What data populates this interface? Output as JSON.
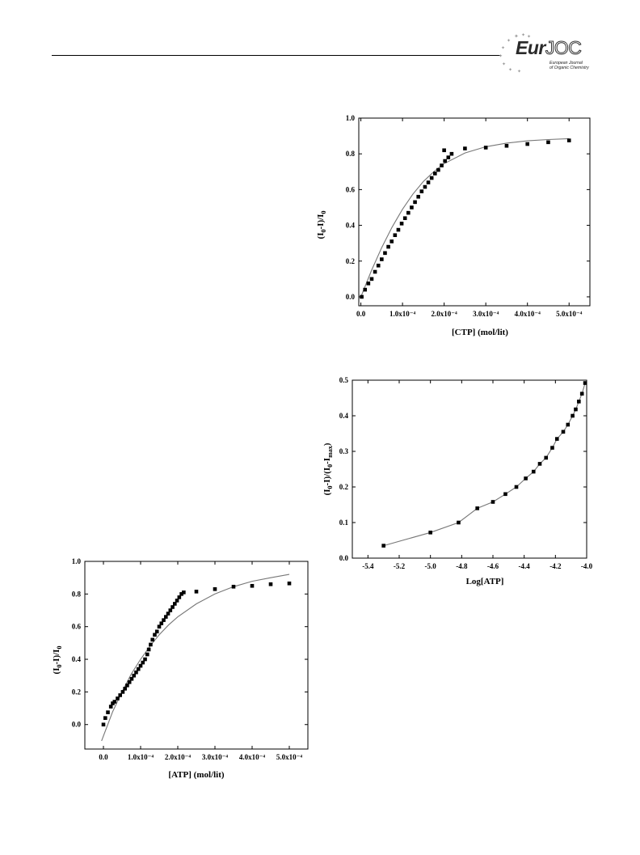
{
  "header": {
    "logo": {
      "main": "EurJOC",
      "sub_line1": "European Journal",
      "sub_line2": "of Organic Chemistry"
    }
  },
  "chart_data": [
    {
      "id": "ctp",
      "type": "scatter",
      "title": "",
      "xlabel": "[CTP] (mol/lit)",
      "ylabel": "(I0-I)/I0",
      "xlim": [
        -0.05,
        5.5
      ],
      "ylim": [
        -0.05,
        1.0
      ],
      "xticks": [
        0,
        1,
        2,
        3,
        4,
        5
      ],
      "xtick_labels": [
        "0.0",
        "1.0x10⁻⁴",
        "2.0x10⁻⁴",
        "3.0x10⁻⁴",
        "4.0x10⁻⁴",
        "5.0x10⁻⁴"
      ],
      "yticks": [
        0,
        0.2,
        0.4,
        0.6,
        0.8,
        1.0
      ],
      "ytick_labels": [
        "0.0",
        "0.2",
        "0.4",
        "0.6",
        "0.8",
        "1.0"
      ],
      "x_unit": "x10⁻⁴ mol/lit",
      "points": [
        [
          0.02,
          0.0
        ],
        [
          0.1,
          0.04
        ],
        [
          0.18,
          0.075
        ],
        [
          0.26,
          0.1
        ],
        [
          0.34,
          0.14
        ],
        [
          0.42,
          0.175
        ],
        [
          0.5,
          0.21
        ],
        [
          0.58,
          0.245
        ],
        [
          0.66,
          0.28
        ],
        [
          0.74,
          0.31
        ],
        [
          0.82,
          0.345
        ],
        [
          0.9,
          0.375
        ],
        [
          0.98,
          0.41
        ],
        [
          1.06,
          0.44
        ],
        [
          1.14,
          0.47
        ],
        [
          1.22,
          0.5
        ],
        [
          1.3,
          0.53
        ],
        [
          1.38,
          0.56
        ],
        [
          1.46,
          0.59
        ],
        [
          1.54,
          0.615
        ],
        [
          1.62,
          0.64
        ],
        [
          1.7,
          0.665
        ],
        [
          1.78,
          0.69
        ],
        [
          1.86,
          0.71
        ],
        [
          1.94,
          0.735
        ],
        [
          2.02,
          0.76
        ],
        [
          2.1,
          0.78
        ],
        [
          2.18,
          0.8
        ],
        [
          2.0,
          0.82
        ],
        [
          2.5,
          0.83
        ],
        [
          3.0,
          0.835
        ],
        [
          3.5,
          0.845
        ],
        [
          4.0,
          0.855
        ],
        [
          4.5,
          0.865
        ],
        [
          5.0,
          0.875
        ]
      ],
      "fit_line": [
        [
          0,
          0
        ],
        [
          0.25,
          0.145
        ],
        [
          0.5,
          0.275
        ],
        [
          0.75,
          0.39
        ],
        [
          1.0,
          0.49
        ],
        [
          1.25,
          0.575
        ],
        [
          1.5,
          0.645
        ],
        [
          1.75,
          0.7
        ],
        [
          2.0,
          0.745
        ],
        [
          2.5,
          0.805
        ],
        [
          3.0,
          0.84
        ],
        [
          3.5,
          0.86
        ],
        [
          4.0,
          0.873
        ],
        [
          4.5,
          0.88
        ],
        [
          5.0,
          0.885
        ]
      ]
    },
    {
      "id": "log-atp",
      "type": "line",
      "title": "",
      "xlabel": "Log[ATP]",
      "ylabel": "(I0-I)/(I0-Imax)",
      "xlim": [
        -5.5,
        -4.0
      ],
      "ylim": [
        0.0,
        0.5
      ],
      "xticks": [
        -5.4,
        -5.2,
        -5.0,
        -4.8,
        -4.6,
        -4.4,
        -4.2,
        -4.0
      ],
      "xtick_labels": [
        "-5.4",
        "-5.2",
        "-5.0",
        "-4.8",
        "-4.6",
        "-4.4",
        "-4.2",
        "-4.0"
      ],
      "yticks": [
        0.0,
        0.1,
        0.2,
        0.3,
        0.4,
        0.5
      ],
      "ytick_labels": [
        "0.0",
        "0.1",
        "0.2",
        "0.3",
        "0.4",
        "0.5"
      ],
      "points": [
        [
          -5.3,
          0.035
        ],
        [
          -5.0,
          0.072
        ],
        [
          -4.82,
          0.1
        ],
        [
          -4.7,
          0.14
        ],
        [
          -4.6,
          0.158
        ],
        [
          -4.52,
          0.18
        ],
        [
          -4.45,
          0.2
        ],
        [
          -4.39,
          0.224
        ],
        [
          -4.34,
          0.243
        ],
        [
          -4.3,
          0.265
        ],
        [
          -4.26,
          0.282
        ],
        [
          -4.22,
          0.31
        ],
        [
          -4.19,
          0.335
        ],
        [
          -4.15,
          0.355
        ],
        [
          -4.12,
          0.375
        ],
        [
          -4.09,
          0.4
        ],
        [
          -4.07,
          0.418
        ],
        [
          -4.05,
          0.44
        ],
        [
          -4.03,
          0.462
        ],
        [
          -4.01,
          0.492
        ]
      ]
    },
    {
      "id": "atp",
      "type": "scatter",
      "title": "",
      "xlabel": "[ATP] (mol/lit)",
      "ylabel": "(I0-I)/I0",
      "xlim": [
        -0.5,
        5.5
      ],
      "ylim": [
        -0.15,
        1.0
      ],
      "xticks": [
        0,
        1,
        2,
        3,
        4,
        5
      ],
      "xtick_labels": [
        "0.0",
        "1.0x10⁻⁴",
        "2.0x10⁻⁴",
        "3.0x10⁻⁴",
        "4.0x10⁻⁴",
        "5.0x10⁻⁴"
      ],
      "yticks": [
        0,
        0.2,
        0.4,
        0.6,
        0.8,
        1.0
      ],
      "ytick_labels": [
        "0.0",
        "0.2",
        "0.4",
        "0.6",
        "0.8",
        "1.0"
      ],
      "x_unit": "x10⁻⁴ mol/lit",
      "points": [
        [
          0.0,
          0.0
        ],
        [
          0.05,
          0.04
        ],
        [
          0.12,
          0.075
        ],
        [
          0.2,
          0.11
        ],
        [
          0.25,
          0.13
        ],
        [
          0.3,
          0.14
        ],
        [
          0.38,
          0.16
        ],
        [
          0.45,
          0.18
        ],
        [
          0.52,
          0.2
        ],
        [
          0.58,
          0.22
        ],
        [
          0.64,
          0.24
        ],
        [
          0.7,
          0.26
        ],
        [
          0.76,
          0.28
        ],
        [
          0.82,
          0.3
        ],
        [
          0.88,
          0.32
        ],
        [
          0.94,
          0.34
        ],
        [
          1.0,
          0.36
        ],
        [
          1.06,
          0.38
        ],
        [
          1.12,
          0.4
        ],
        [
          1.18,
          0.43
        ],
        [
          1.22,
          0.46
        ],
        [
          1.27,
          0.49
        ],
        [
          1.32,
          0.52
        ],
        [
          1.38,
          0.55
        ],
        [
          1.44,
          0.57
        ],
        [
          1.5,
          0.6
        ],
        [
          1.56,
          0.62
        ],
        [
          1.62,
          0.64
        ],
        [
          1.68,
          0.66
        ],
        [
          1.74,
          0.68
        ],
        [
          1.8,
          0.7
        ],
        [
          1.86,
          0.72
        ],
        [
          1.92,
          0.74
        ],
        [
          1.98,
          0.76
        ],
        [
          2.04,
          0.78
        ],
        [
          2.1,
          0.8
        ],
        [
          2.16,
          0.81
        ],
        [
          2.5,
          0.815
        ],
        [
          3.0,
          0.83
        ],
        [
          3.5,
          0.845
        ],
        [
          4.0,
          0.85
        ],
        [
          4.5,
          0.86
        ],
        [
          5.0,
          0.865
        ]
      ],
      "fit_line": [
        [
          -0.05,
          -0.1
        ],
        [
          0.25,
          0.08
        ],
        [
          0.5,
          0.2
        ],
        [
          0.75,
          0.31
        ],
        [
          1.0,
          0.4
        ],
        [
          1.25,
          0.48
        ],
        [
          1.5,
          0.55
        ],
        [
          1.75,
          0.61
        ],
        [
          2.0,
          0.66
        ],
        [
          2.5,
          0.74
        ],
        [
          3.0,
          0.8
        ],
        [
          3.5,
          0.845
        ],
        [
          4.0,
          0.878
        ],
        [
          4.5,
          0.9
        ],
        [
          5.0,
          0.92
        ]
      ]
    }
  ]
}
